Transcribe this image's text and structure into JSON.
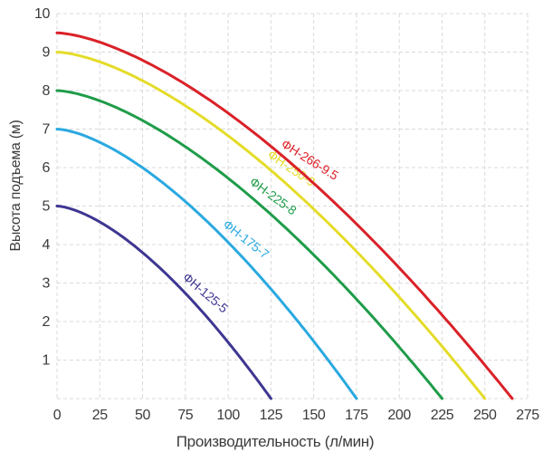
{
  "chart_data": {
    "type": "line",
    "title": "",
    "xlabel": "Производительность (л/мин)",
    "ylabel": "Высота подъема (м)",
    "xlim": [
      0,
      275
    ],
    "ylim": [
      0,
      10
    ],
    "x_ticks": [
      0,
      25,
      50,
      75,
      100,
      125,
      150,
      175,
      200,
      225,
      250,
      275
    ],
    "y_ticks": [
      1,
      2,
      3,
      4,
      5,
      6,
      7,
      8,
      9,
      10
    ],
    "grid": true,
    "grid_color": "#d9d9d9",
    "axis_text_color": "#3b3b3b",
    "background_color": "#ffffff",
    "legend_position": "labels-along-curves",
    "curve_model": {
      "formula": "H = h_max * (1 - (Q/q_max)^k)",
      "k": 1.55
    },
    "series": [
      {
        "name": "ФН-125-5",
        "color": "#3e3691",
        "h_max": 5,
        "q_max": 125,
        "label_q": 81,
        "label_angle": 40,
        "points": [
          [
            0,
            5
          ],
          [
            25,
            4.6
          ],
          [
            50,
            3.8
          ],
          [
            75,
            2.7
          ],
          [
            100,
            1.5
          ],
          [
            125,
            0
          ]
        ]
      },
      {
        "name": "ФН-175-7",
        "color": "#2aa9e0",
        "h_max": 7,
        "q_max": 175,
        "label_q": 105,
        "label_angle": 38,
        "points": [
          [
            0,
            7
          ],
          [
            25,
            6.7
          ],
          [
            50,
            6.0
          ],
          [
            75,
            5.1
          ],
          [
            100,
            4.1
          ],
          [
            125,
            2.8
          ],
          [
            150,
            1.5
          ],
          [
            175,
            0
          ]
        ]
      },
      {
        "name": "ФН-225-8",
        "color": "#1f9c49",
        "h_max": 8,
        "q_max": 225,
        "label_q": 121,
        "label_angle": 36,
        "points": [
          [
            0,
            8
          ],
          [
            25,
            7.7
          ],
          [
            50,
            7.2
          ],
          [
            75,
            6.5
          ],
          [
            100,
            5.7
          ],
          [
            125,
            4.8
          ],
          [
            150,
            3.7
          ],
          [
            175,
            2.6
          ],
          [
            200,
            1.3
          ],
          [
            225,
            0
          ]
        ]
      },
      {
        "name": "ФН-250-9",
        "color": "#e4dc28",
        "h_max": 9,
        "q_max": 250,
        "label_q": 132,
        "label_angle": 34,
        "points": [
          [
            0,
            9
          ],
          [
            25,
            8.7
          ],
          [
            50,
            8.3
          ],
          [
            75,
            7.6
          ],
          [
            100,
            6.8
          ],
          [
            125,
            5.9
          ],
          [
            150,
            4.9
          ],
          [
            175,
            3.8
          ],
          [
            200,
            2.6
          ],
          [
            225,
            1.4
          ],
          [
            250,
            0
          ]
        ]
      },
      {
        "name": "ФН-266-9.5",
        "color": "#da2128",
        "h_max": 9.5,
        "q_max": 266,
        "label_q": 143,
        "label_angle": 32,
        "points": [
          [
            0,
            9.5
          ],
          [
            25,
            9.3
          ],
          [
            50,
            8.8
          ],
          [
            75,
            8.2
          ],
          [
            100,
            7.4
          ],
          [
            125,
            6.6
          ],
          [
            150,
            5.6
          ],
          [
            175,
            4.5
          ],
          [
            200,
            3.4
          ],
          [
            225,
            2.2
          ],
          [
            250,
            0.9
          ],
          [
            266,
            0
          ]
        ]
      }
    ]
  }
}
